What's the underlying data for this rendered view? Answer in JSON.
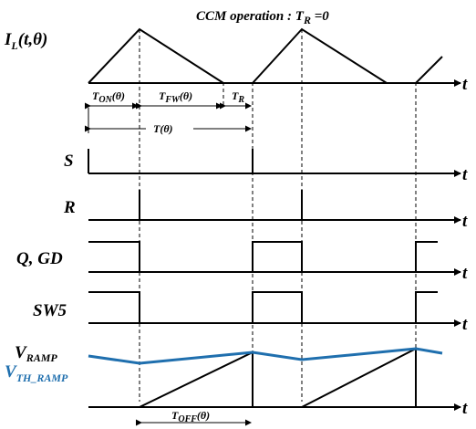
{
  "title": {
    "main": "CCM operation : T",
    "sub": "R",
    "tail": " =0"
  },
  "signals": {
    "il": {
      "main": "I",
      "sub": "L",
      "tail": "(t,θ)"
    },
    "s": "S",
    "r": "R",
    "qgd": "Q, GD",
    "sw5": "SW5",
    "vramp": {
      "main": "V",
      "sub": "RAMP"
    },
    "vth": {
      "main": "V",
      "sub": "TH_RAMP"
    },
    "t_axis": "t"
  },
  "intervals": {
    "ton": {
      "main": "T",
      "sub": "ON",
      "tail": "(θ)"
    },
    "tfw": {
      "main": "T",
      "sub": "FW",
      "tail": "(θ)"
    },
    "tr": {
      "main": "T",
      "sub": "R"
    },
    "period": "T(θ)",
    "toff": {
      "main": "T",
      "sub": "OFF",
      "tail": "(θ)"
    }
  },
  "colors": {
    "trace": "#000000",
    "threshold": "#1f6fae"
  }
}
